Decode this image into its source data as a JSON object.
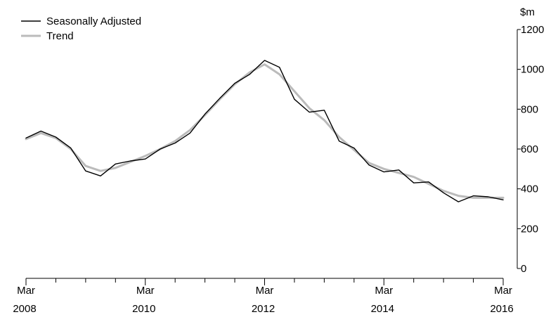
{
  "chart_data": {
    "type": "line",
    "x_ticks": [
      {
        "month": "Mar",
        "year": "2008"
      },
      {
        "month": "Mar",
        "year": "2010"
      },
      {
        "month": "Mar",
        "year": "2012"
      },
      {
        "month": "Mar",
        "year": "2014"
      },
      {
        "month": "Mar",
        "year": "2016"
      }
    ],
    "x_range": [
      "Mar 2008",
      "Mar 2016"
    ],
    "y_unit": "$m",
    "ylim": [
      0,
      1200
    ],
    "y_ticks": [
      "0",
      "200",
      "400",
      "600",
      "800",
      "1000",
      "1200"
    ],
    "grid": false,
    "legend_position": "top-left",
    "quarters": [
      "Mar 2008",
      "Jun 2008",
      "Sep 2008",
      "Dec 2008",
      "Mar 2009",
      "Jun 2009",
      "Sep 2009",
      "Dec 2009",
      "Mar 2010",
      "Jun 2010",
      "Sep 2010",
      "Dec 2010",
      "Mar 2011",
      "Jun 2011",
      "Sep 2011",
      "Dec 2011",
      "Mar 2012",
      "Jun 2012",
      "Sep 2012",
      "Dec 2012",
      "Mar 2013",
      "Jun 2013",
      "Sep 2013",
      "Dec 2013",
      "Mar 2014",
      "Jun 2014",
      "Sep 2014",
      "Dec 2014",
      "Mar 2015",
      "Jun 2015",
      "Sep 2015",
      "Dec 2015",
      "Mar 2016"
    ],
    "series": [
      {
        "name": "Seasonally Adjusted",
        "color": "#000000",
        "values": [
          655,
          690,
          660,
          605,
          490,
          465,
          525,
          540,
          550,
          600,
          630,
          680,
          775,
          855,
          930,
          975,
          1045,
          1010,
          850,
          785,
          795,
          640,
          605,
          520,
          485,
          495,
          430,
          435,
          380,
          335,
          365,
          360,
          345
        ]
      },
      {
        "name": "Trend",
        "color": "#bbbbbb",
        "values": [
          650,
          680,
          655,
          600,
          515,
          490,
          505,
          535,
          565,
          600,
          640,
          695,
          770,
          850,
          925,
          985,
          1025,
          975,
          890,
          805,
          745,
          660,
          595,
          530,
          500,
          480,
          460,
          425,
          390,
          365,
          355,
          355,
          355
        ]
      }
    ]
  }
}
